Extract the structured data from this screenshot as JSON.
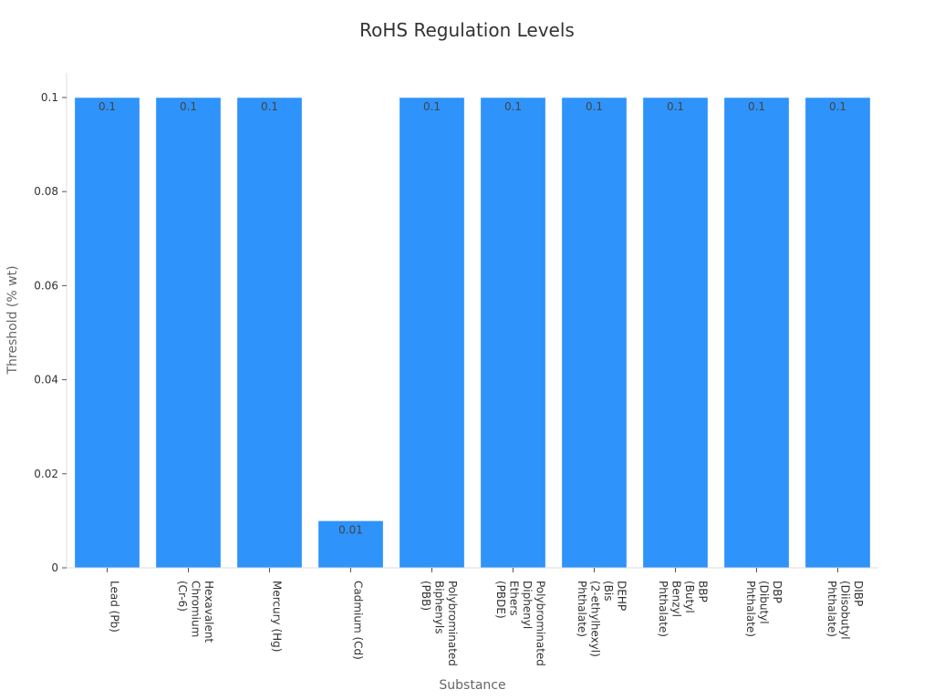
{
  "chart_data": {
    "type": "bar",
    "title": "RoHS Regulation Levels",
    "xlabel": "Substance",
    "ylabel": "Threshold (% wt)",
    "categories": [
      "Lead (Pb)",
      "Hexavalent Chromium (Cr-6)",
      "Mercury (Hg)",
      "Cadmium (Cd)",
      "Polybrominated Biphenyls (PBB)",
      "Polybrominated Diphenyl Ethers (PBDE)",
      "DEHP (Bis (2-ethylhexyl) Phthalate)",
      "BBP (Butyl Benzyl Phthalate)",
      "DBP (Dibutyl Phthalate)",
      "DIBP (Diisobutyl Phthalate)"
    ],
    "category_lines": [
      [
        "Lead (Pb)"
      ],
      [
        "Hexavalent",
        "Chromium",
        "(Cr-6)"
      ],
      [
        "Mercury (Hg)"
      ],
      [
        "Cadmium (Cd)"
      ],
      [
        "Polybrominated",
        "Biphenyls",
        "(PBB)"
      ],
      [
        "Polybrominated",
        "Diphenyl",
        "Ethers",
        "(PBDE)"
      ],
      [
        "DEHP",
        "(Bis",
        "(2-ethylhexyl)",
        "Phthalate)"
      ],
      [
        "BBP",
        "(Butyl",
        "Benzyl",
        "Phthalate)"
      ],
      [
        "DBP",
        "(Dibutyl",
        "Phthalate)"
      ],
      [
        "DIBP",
        "(Diisobutyl",
        "Phthalate)"
      ]
    ],
    "values": [
      0.1,
      0.1,
      0.1,
      0.01,
      0.1,
      0.1,
      0.1,
      0.1,
      0.1,
      0.1
    ],
    "value_labels": [
      "0.1",
      "0.1",
      "0.1",
      "0.01",
      "0.1",
      "0.1",
      "0.1",
      "0.1",
      "0.1",
      "0.1"
    ],
    "yticks": [
      0,
      0.02,
      0.04,
      0.06,
      0.08,
      0.1
    ],
    "ytick_labels": [
      "0",
      "0.02",
      "0.04",
      "0.06",
      "0.08",
      "0.1"
    ],
    "ylim": [
      0,
      0.1
    ],
    "grid": false,
    "legend": "none",
    "bar_color": "#2e93fa"
  }
}
